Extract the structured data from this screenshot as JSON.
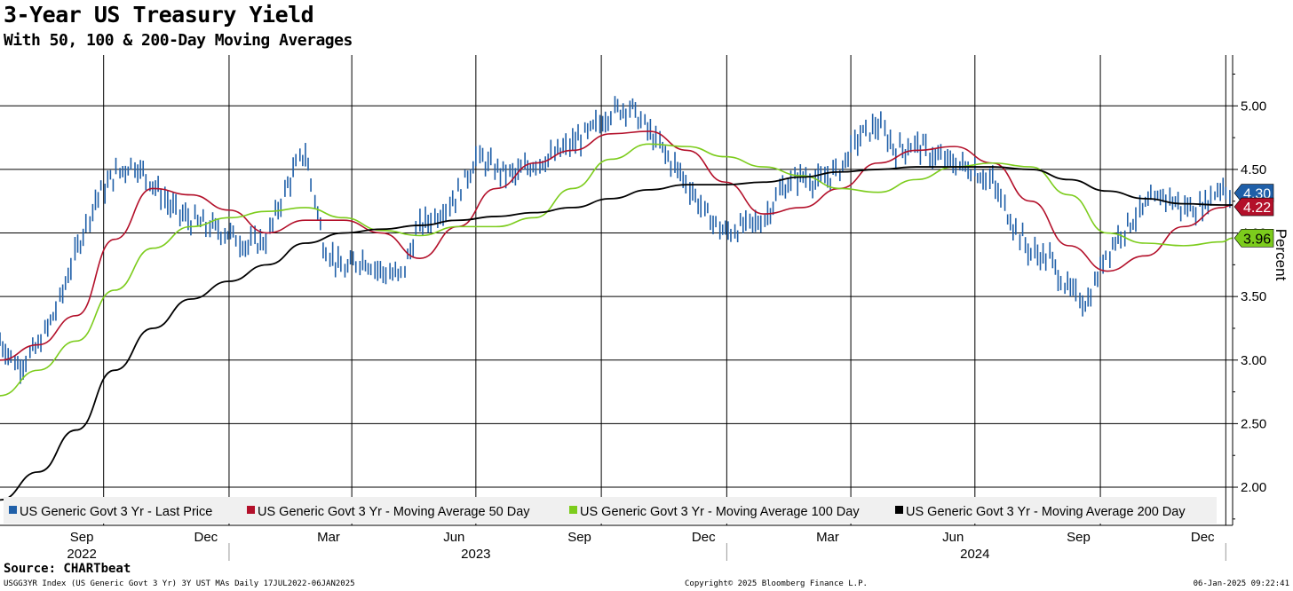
{
  "header": {
    "title": "3-Year US Treasury Yield",
    "subtitle": "With 50, 100 & 200-Day Moving Averages"
  },
  "footer": {
    "source": "Source: CHARTbeat",
    "index_info": "USGG3YR Index (US Generic Govt 3 Yr) 3Y UST MAs  Daily 17JUL2022-06JAN2025",
    "copyright": "Copyright© 2025 Bloomberg Finance L.P.",
    "timestamp": "06-Jan-2025 09:22:41"
  },
  "colors": {
    "price": "#1f5fa8",
    "ma50": "#b3102a",
    "ma100": "#7ccc1c",
    "ma200": "#000000",
    "grid": "#000000",
    "legend_bg": "#f0f0f0"
  },
  "chart_data": {
    "type": "line",
    "title": "3-Year US Treasury Yield",
    "subtitle": "With 50, 100 & 200-Day Moving Averages",
    "ylabel": "Percent",
    "ylim": [
      1.7,
      5.4
    ],
    "y_ticks": [
      "5.00",
      "4.50",
      "4.00",
      "3.50",
      "3.00",
      "2.50",
      "2.00"
    ],
    "y_tick_values": [
      5.0,
      4.5,
      4.0,
      3.5,
      3.0,
      2.5,
      2.0
    ],
    "x_range": [
      "2022-07-17",
      "2025-01-06"
    ],
    "x_month_ticks": [
      {
        "label": "Sep",
        "date": "2022-09-15"
      },
      {
        "label": "Dec",
        "date": "2022-12-15"
      },
      {
        "label": "Mar",
        "date": "2023-03-15"
      },
      {
        "label": "Jun",
        "date": "2023-06-15"
      },
      {
        "label": "Sep",
        "date": "2023-09-15"
      },
      {
        "label": "Dec",
        "date": "2023-12-15"
      },
      {
        "label": "Mar",
        "date": "2024-03-15"
      },
      {
        "label": "Jun",
        "date": "2024-06-15"
      },
      {
        "label": "Sep",
        "date": "2024-09-15"
      },
      {
        "label": "Dec",
        "date": "2024-12-15"
      }
    ],
    "x_year_labels": [
      {
        "label": "2022",
        "date": "2022-09-15"
      },
      {
        "label": "2023",
        "date": "2023-07-01"
      },
      {
        "label": "2024",
        "date": "2024-07-01"
      }
    ],
    "x_year_separators": [
      "2023-01-01",
      "2024-01-01",
      "2025-01-01"
    ],
    "vertical_grid_dates": [
      "2022-10-01",
      "2023-01-01",
      "2023-04-01",
      "2023-07-01",
      "2023-10-01",
      "2024-01-01",
      "2024-04-01",
      "2024-07-01",
      "2024-10-01",
      "2025-01-01"
    ],
    "legend_position": "bottom",
    "series": [
      {
        "name": "US Generic Govt 3 Yr - Last Price",
        "style": "ohlc-bars",
        "x": [
          "2022-07-17",
          "2022-07-31",
          "2022-08-14",
          "2022-08-28",
          "2022-09-11",
          "2022-09-25",
          "2022-10-09",
          "2022-10-23",
          "2022-11-06",
          "2022-11-20",
          "2022-12-04",
          "2022-12-18",
          "2023-01-01",
          "2023-01-15",
          "2023-01-29",
          "2023-02-12",
          "2023-02-26",
          "2023-03-12",
          "2023-03-26",
          "2023-04-09",
          "2023-04-23",
          "2023-05-07",
          "2023-05-21",
          "2023-06-04",
          "2023-06-18",
          "2023-07-02",
          "2023-07-16",
          "2023-07-30",
          "2023-08-13",
          "2023-08-27",
          "2023-09-10",
          "2023-09-24",
          "2023-10-08",
          "2023-10-22",
          "2023-11-05",
          "2023-11-19",
          "2023-12-03",
          "2023-12-17",
          "2023-12-31",
          "2024-01-14",
          "2024-01-28",
          "2024-02-11",
          "2024-02-25",
          "2024-03-10",
          "2024-03-24",
          "2024-04-07",
          "2024-04-21",
          "2024-05-05",
          "2024-05-19",
          "2024-06-02",
          "2024-06-16",
          "2024-06-30",
          "2024-07-14",
          "2024-07-28",
          "2024-08-11",
          "2024-08-25",
          "2024-09-08",
          "2024-09-22",
          "2024-10-06",
          "2024-10-20",
          "2024-11-03",
          "2024-11-17",
          "2024-12-01",
          "2024-12-15",
          "2024-12-29",
          "2025-01-06"
        ],
        "values": [
          3.15,
          2.95,
          3.1,
          3.4,
          3.85,
          4.25,
          4.45,
          4.55,
          4.4,
          4.2,
          4.1,
          4.05,
          4.0,
          3.9,
          3.95,
          4.35,
          4.65,
          3.9,
          3.7,
          3.8,
          3.7,
          3.65,
          4.05,
          4.15,
          4.3,
          4.6,
          4.5,
          4.45,
          4.55,
          4.6,
          4.7,
          4.8,
          4.95,
          5.0,
          4.8,
          4.6,
          4.4,
          4.15,
          4.0,
          4.05,
          4.1,
          4.35,
          4.45,
          4.4,
          4.5,
          4.75,
          4.85,
          4.65,
          4.7,
          4.6,
          4.55,
          4.5,
          4.4,
          4.1,
          3.85,
          3.8,
          3.55,
          3.45,
          3.85,
          4.05,
          4.2,
          4.3,
          4.2,
          4.2,
          4.38,
          4.3
        ]
      },
      {
        "name": "US Generic Govt 3 Yr - Moving Average 50 Day",
        "x": [
          "2022-07-17",
          "2022-08-14",
          "2022-09-11",
          "2022-10-09",
          "2022-11-06",
          "2022-12-04",
          "2023-01-01",
          "2023-01-29",
          "2023-02-26",
          "2023-03-26",
          "2023-04-23",
          "2023-05-21",
          "2023-06-18",
          "2023-07-16",
          "2023-08-13",
          "2023-09-10",
          "2023-10-08",
          "2023-11-05",
          "2023-12-03",
          "2023-12-31",
          "2024-01-28",
          "2024-02-25",
          "2024-03-24",
          "2024-04-21",
          "2024-05-19",
          "2024-06-16",
          "2024-07-14",
          "2024-08-11",
          "2024-09-08",
          "2024-10-06",
          "2024-11-03",
          "2024-12-01",
          "2024-12-29",
          "2025-01-06"
        ],
        "values": [
          3.0,
          3.12,
          3.35,
          3.95,
          4.35,
          4.3,
          4.18,
          4.0,
          4.1,
          4.1,
          4.0,
          3.8,
          4.05,
          4.35,
          4.55,
          4.65,
          4.78,
          4.8,
          4.65,
          4.4,
          4.15,
          4.2,
          4.35,
          4.55,
          4.65,
          4.68,
          4.55,
          4.25,
          3.9,
          3.7,
          3.82,
          4.05,
          4.2,
          4.22
        ]
      },
      {
        "name": "US Generic Govt 3 Yr - Moving Average 100 Day",
        "x": [
          "2022-07-17",
          "2022-08-14",
          "2022-09-11",
          "2022-10-09",
          "2022-11-06",
          "2022-12-04",
          "2023-01-01",
          "2023-01-29",
          "2023-02-26",
          "2023-03-26",
          "2023-04-23",
          "2023-05-21",
          "2023-06-18",
          "2023-07-16",
          "2023-08-13",
          "2023-09-10",
          "2023-10-08",
          "2023-11-05",
          "2023-12-03",
          "2023-12-31",
          "2024-01-28",
          "2024-02-25",
          "2024-03-24",
          "2024-04-21",
          "2024-05-19",
          "2024-06-16",
          "2024-07-14",
          "2024-08-11",
          "2024-09-08",
          "2024-10-06",
          "2024-11-03",
          "2024-12-01",
          "2024-12-29",
          "2025-01-06"
        ],
        "values": [
          2.72,
          2.92,
          3.15,
          3.55,
          3.88,
          4.05,
          4.12,
          4.17,
          4.2,
          4.12,
          4.02,
          3.98,
          4.05,
          4.05,
          4.12,
          4.35,
          4.58,
          4.7,
          4.68,
          4.6,
          4.52,
          4.45,
          4.35,
          4.32,
          4.42,
          4.52,
          4.55,
          4.52,
          4.3,
          4.0,
          3.92,
          3.9,
          3.93,
          3.96
        ]
      },
      {
        "name": "US Generic Govt 3 Yr - Moving Average 200 Day",
        "x": [
          "2022-07-17",
          "2022-08-14",
          "2022-09-11",
          "2022-10-09",
          "2022-11-06",
          "2022-12-04",
          "2023-01-01",
          "2023-01-29",
          "2023-02-26",
          "2023-03-26",
          "2023-04-23",
          "2023-05-21",
          "2023-06-18",
          "2023-07-16",
          "2023-08-13",
          "2023-09-10",
          "2023-10-08",
          "2023-11-05",
          "2023-12-03",
          "2023-12-31",
          "2024-01-28",
          "2024-02-25",
          "2024-03-24",
          "2024-04-21",
          "2024-05-19",
          "2024-06-16",
          "2024-07-14",
          "2024-08-11",
          "2024-09-08",
          "2024-10-06",
          "2024-11-03",
          "2024-12-01",
          "2024-12-29",
          "2025-01-06"
        ],
        "values": [
          1.9,
          2.12,
          2.45,
          2.92,
          3.25,
          3.48,
          3.62,
          3.75,
          3.92,
          4.0,
          4.03,
          4.06,
          4.1,
          4.13,
          4.16,
          4.2,
          4.27,
          4.34,
          4.38,
          4.38,
          4.4,
          4.44,
          4.48,
          4.5,
          4.52,
          4.52,
          4.52,
          4.5,
          4.42,
          4.33,
          4.27,
          4.23,
          4.22,
          4.22
        ]
      }
    ],
    "last_value_labels": [
      {
        "series": 0,
        "label": "4.30",
        "value": 4.3
      },
      {
        "series": 1,
        "label": "4.22",
        "value": 4.22
      },
      {
        "series": 2,
        "label": "3.96",
        "value": 3.96
      }
    ]
  }
}
